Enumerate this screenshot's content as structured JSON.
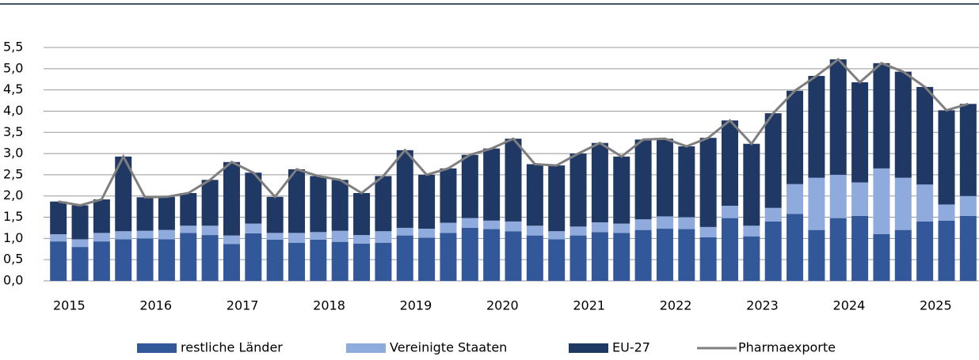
{
  "chart_data": {
    "type": "bar",
    "stacked": true,
    "categories": [
      "2015",
      null,
      null,
      null,
      "2016",
      null,
      null,
      null,
      "2017",
      null,
      null,
      null,
      "2018",
      null,
      null,
      null,
      "2019",
      null,
      null,
      null,
      "2020",
      null,
      null,
      null,
      "2021",
      null,
      null,
      null,
      "2022",
      null,
      null,
      null,
      "2023",
      null,
      null,
      null,
      "2024",
      null,
      null,
      null,
      "2025",
      null,
      null
    ],
    "series": [
      {
        "name": "restliche Länder",
        "color": "#33589a",
        "values": [
          0.93,
          0.8,
          0.93,
          0.98,
          1.0,
          0.98,
          1.13,
          1.08,
          0.87,
          1.12,
          0.97,
          0.9,
          0.97,
          0.92,
          0.88,
          0.9,
          1.07,
          1.02,
          1.13,
          1.25,
          1.22,
          1.17,
          1.07,
          0.98,
          1.07,
          1.15,
          1.13,
          1.2,
          1.23,
          1.22,
          1.03,
          1.48,
          1.05,
          1.4,
          1.58,
          1.2,
          1.48,
          1.53,
          1.1,
          1.2,
          1.4,
          1.42,
          1.53
        ]
      },
      {
        "name": "Vereinigte Staaten",
        "color": "#8faadc",
        "values": [
          0.17,
          0.18,
          0.2,
          0.19,
          0.18,
          0.22,
          0.17,
          0.22,
          0.2,
          0.23,
          0.16,
          0.23,
          0.18,
          0.26,
          0.2,
          0.27,
          0.18,
          0.21,
          0.24,
          0.23,
          0.2,
          0.23,
          0.23,
          0.19,
          0.21,
          0.23,
          0.22,
          0.25,
          0.29,
          0.28,
          0.24,
          0.29,
          0.25,
          0.32,
          0.7,
          1.23,
          1.02,
          0.79,
          1.55,
          1.23,
          0.87,
          0.38,
          0.47
        ]
      },
      {
        "name": "EU-27",
        "color": "#203864",
        "values": [
          0.77,
          0.8,
          0.79,
          1.76,
          0.79,
          0.78,
          0.77,
          1.08,
          1.73,
          1.2,
          0.85,
          1.5,
          1.32,
          1.2,
          0.99,
          1.3,
          1.83,
          1.27,
          1.28,
          1.49,
          1.7,
          1.95,
          1.45,
          1.55,
          1.72,
          1.87,
          1.58,
          1.88,
          1.83,
          1.67,
          2.1,
          2.01,
          1.93,
          2.23,
          2.2,
          2.4,
          2.72,
          2.36,
          2.48,
          2.5,
          2.3,
          2.22,
          2.17
        ]
      },
      {
        "name": "Pharmaexporte",
        "color": "#7f7f7f",
        "type": "line",
        "values": [
          1.87,
          1.78,
          1.92,
          2.93,
          1.97,
          1.98,
          2.07,
          2.38,
          2.8,
          2.55,
          1.98,
          2.63,
          2.47,
          2.38,
          2.07,
          2.47,
          3.08,
          2.5,
          2.65,
          2.97,
          3.12,
          3.35,
          2.75,
          2.72,
          3.0,
          3.25,
          2.93,
          3.33,
          3.35,
          3.17,
          3.37,
          3.78,
          3.23,
          3.95,
          4.48,
          4.83,
          5.22,
          4.68,
          5.13,
          4.93,
          4.57,
          4.02,
          4.17
        ]
      }
    ],
    "ylim": [
      0,
      5.5
    ],
    "yticks": [
      {
        "value": 0,
        "label": "0,0"
      },
      {
        "value": 0.5,
        "label": "0,5"
      },
      {
        "value": 1,
        "label": "1,0"
      },
      {
        "value": 1.5,
        "label": "1,5"
      },
      {
        "value": 2,
        "label": "2,0"
      },
      {
        "value": 2.5,
        "label": "2,5"
      },
      {
        "value": 3,
        "label": "3,0"
      },
      {
        "value": 3.5,
        "label": "3,5"
      },
      {
        "value": 4,
        "label": "4,0"
      },
      {
        "value": 4.5,
        "label": "4,5"
      },
      {
        "value": 5,
        "label": "5,0"
      },
      {
        "value": 5.5,
        "label": "5,5"
      }
    ],
    "grid": true,
    "legend": "bottom"
  }
}
